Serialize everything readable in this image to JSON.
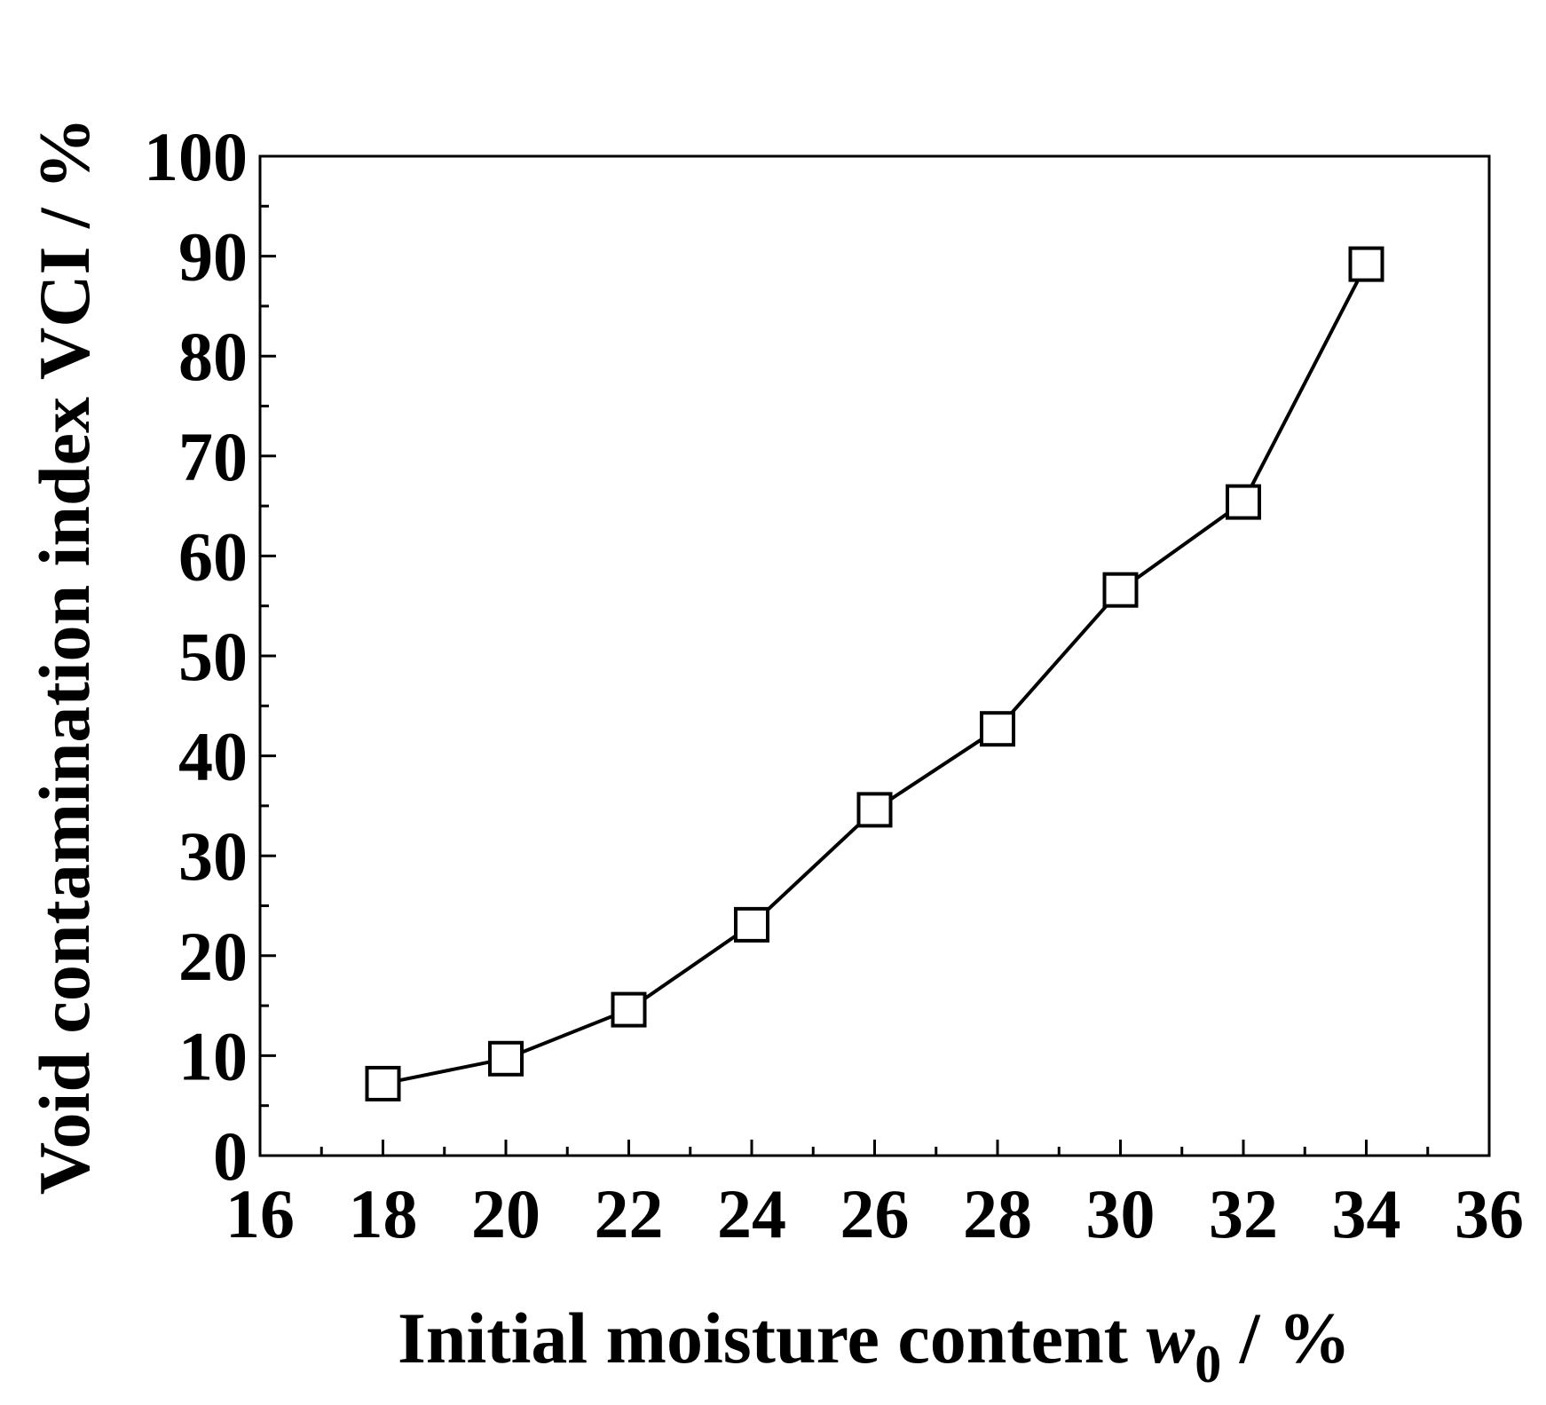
{
  "chart_data": {
    "type": "line",
    "x_label": {
      "text": "Initial moisture content ",
      "var": "w",
      "sub": "0",
      "unit": " / %"
    },
    "y_label": "Void contamination index VCI / %",
    "x": [
      18,
      20,
      22,
      24,
      26,
      28,
      30,
      32,
      34
    ],
    "series": [
      {
        "color": "#000000",
        "marker": "square",
        "values": [
          7.2,
          9.7,
          14.6,
          23.1,
          34.6,
          42.7,
          56.6,
          65.4,
          89.2
        ]
      }
    ],
    "xlim": [
      16,
      36
    ],
    "xticks": [
      16,
      18,
      20,
      22,
      24,
      26,
      28,
      30,
      32,
      34,
      36
    ],
    "ylim": [
      0,
      100
    ],
    "yticks": [
      0,
      10,
      20,
      30,
      40,
      50,
      60,
      70,
      80,
      90,
      100
    ],
    "grid": false
  }
}
